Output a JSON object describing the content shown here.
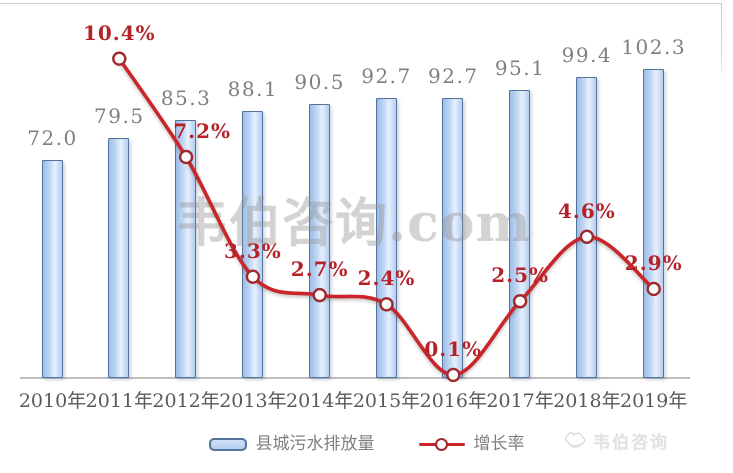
{
  "chart_data": {
    "type": "bar",
    "combo": "bar+line",
    "categories": [
      "2010年",
      "2011年",
      "2012年",
      "2013年",
      "2014年",
      "2015年",
      "2016年",
      "2017年",
      "2018年",
      "2019年"
    ],
    "series": [
      {
        "name": "县城污水排放量",
        "type": "bar",
        "values": [
          72.0,
          79.5,
          85.3,
          88.1,
          90.5,
          92.7,
          92.7,
          95.1,
          99.4,
          102.3
        ],
        "data_labels": [
          "72.0",
          "79.5",
          "85.3",
          "88.1",
          "90.5",
          "92.7",
          "92.7",
          "95.1",
          "99.4",
          "102.3"
        ],
        "axis": "left"
      },
      {
        "name": "增长率",
        "type": "line",
        "values": [
          null,
          10.4,
          7.2,
          3.3,
          2.7,
          2.4,
          0.1,
          2.5,
          4.6,
          2.9
        ],
        "data_labels": [
          null,
          "10.4%",
          "7.2%",
          "3.3%",
          "2.7%",
          "2.4%",
          "0.1%",
          "2.5%",
          "4.6%",
          "2.9%"
        ],
        "axis": "right",
        "unit": "%"
      }
    ],
    "title": "",
    "xlabel": "",
    "ylabel": "",
    "ylim_left": [
      0,
      125
    ],
    "ylim_right": [
      0,
      12.3
    ],
    "grid": false,
    "legend_position": "bottom"
  },
  "legend": {
    "bar_label": "县城污水排放量",
    "line_label": "增长率"
  },
  "watermark": {
    "center_text": "韦伯咨询.com",
    "brand_text": "韦伯咨询"
  },
  "colors": {
    "bar_border": "#54749e",
    "bar_fill_light": "#e7f0fc",
    "bar_fill_mid": "#9dbde8",
    "line": "#c9252b",
    "marker_stroke": "#9e2a2b",
    "marker_fill": "#fdfdfd",
    "bar_value_label": "#7f7f7f",
    "line_value_label": "#b4232a",
    "axis_label": "#5a5a5a",
    "axis_line": "#bdbdbd",
    "watermark": "#bfbfbf"
  }
}
